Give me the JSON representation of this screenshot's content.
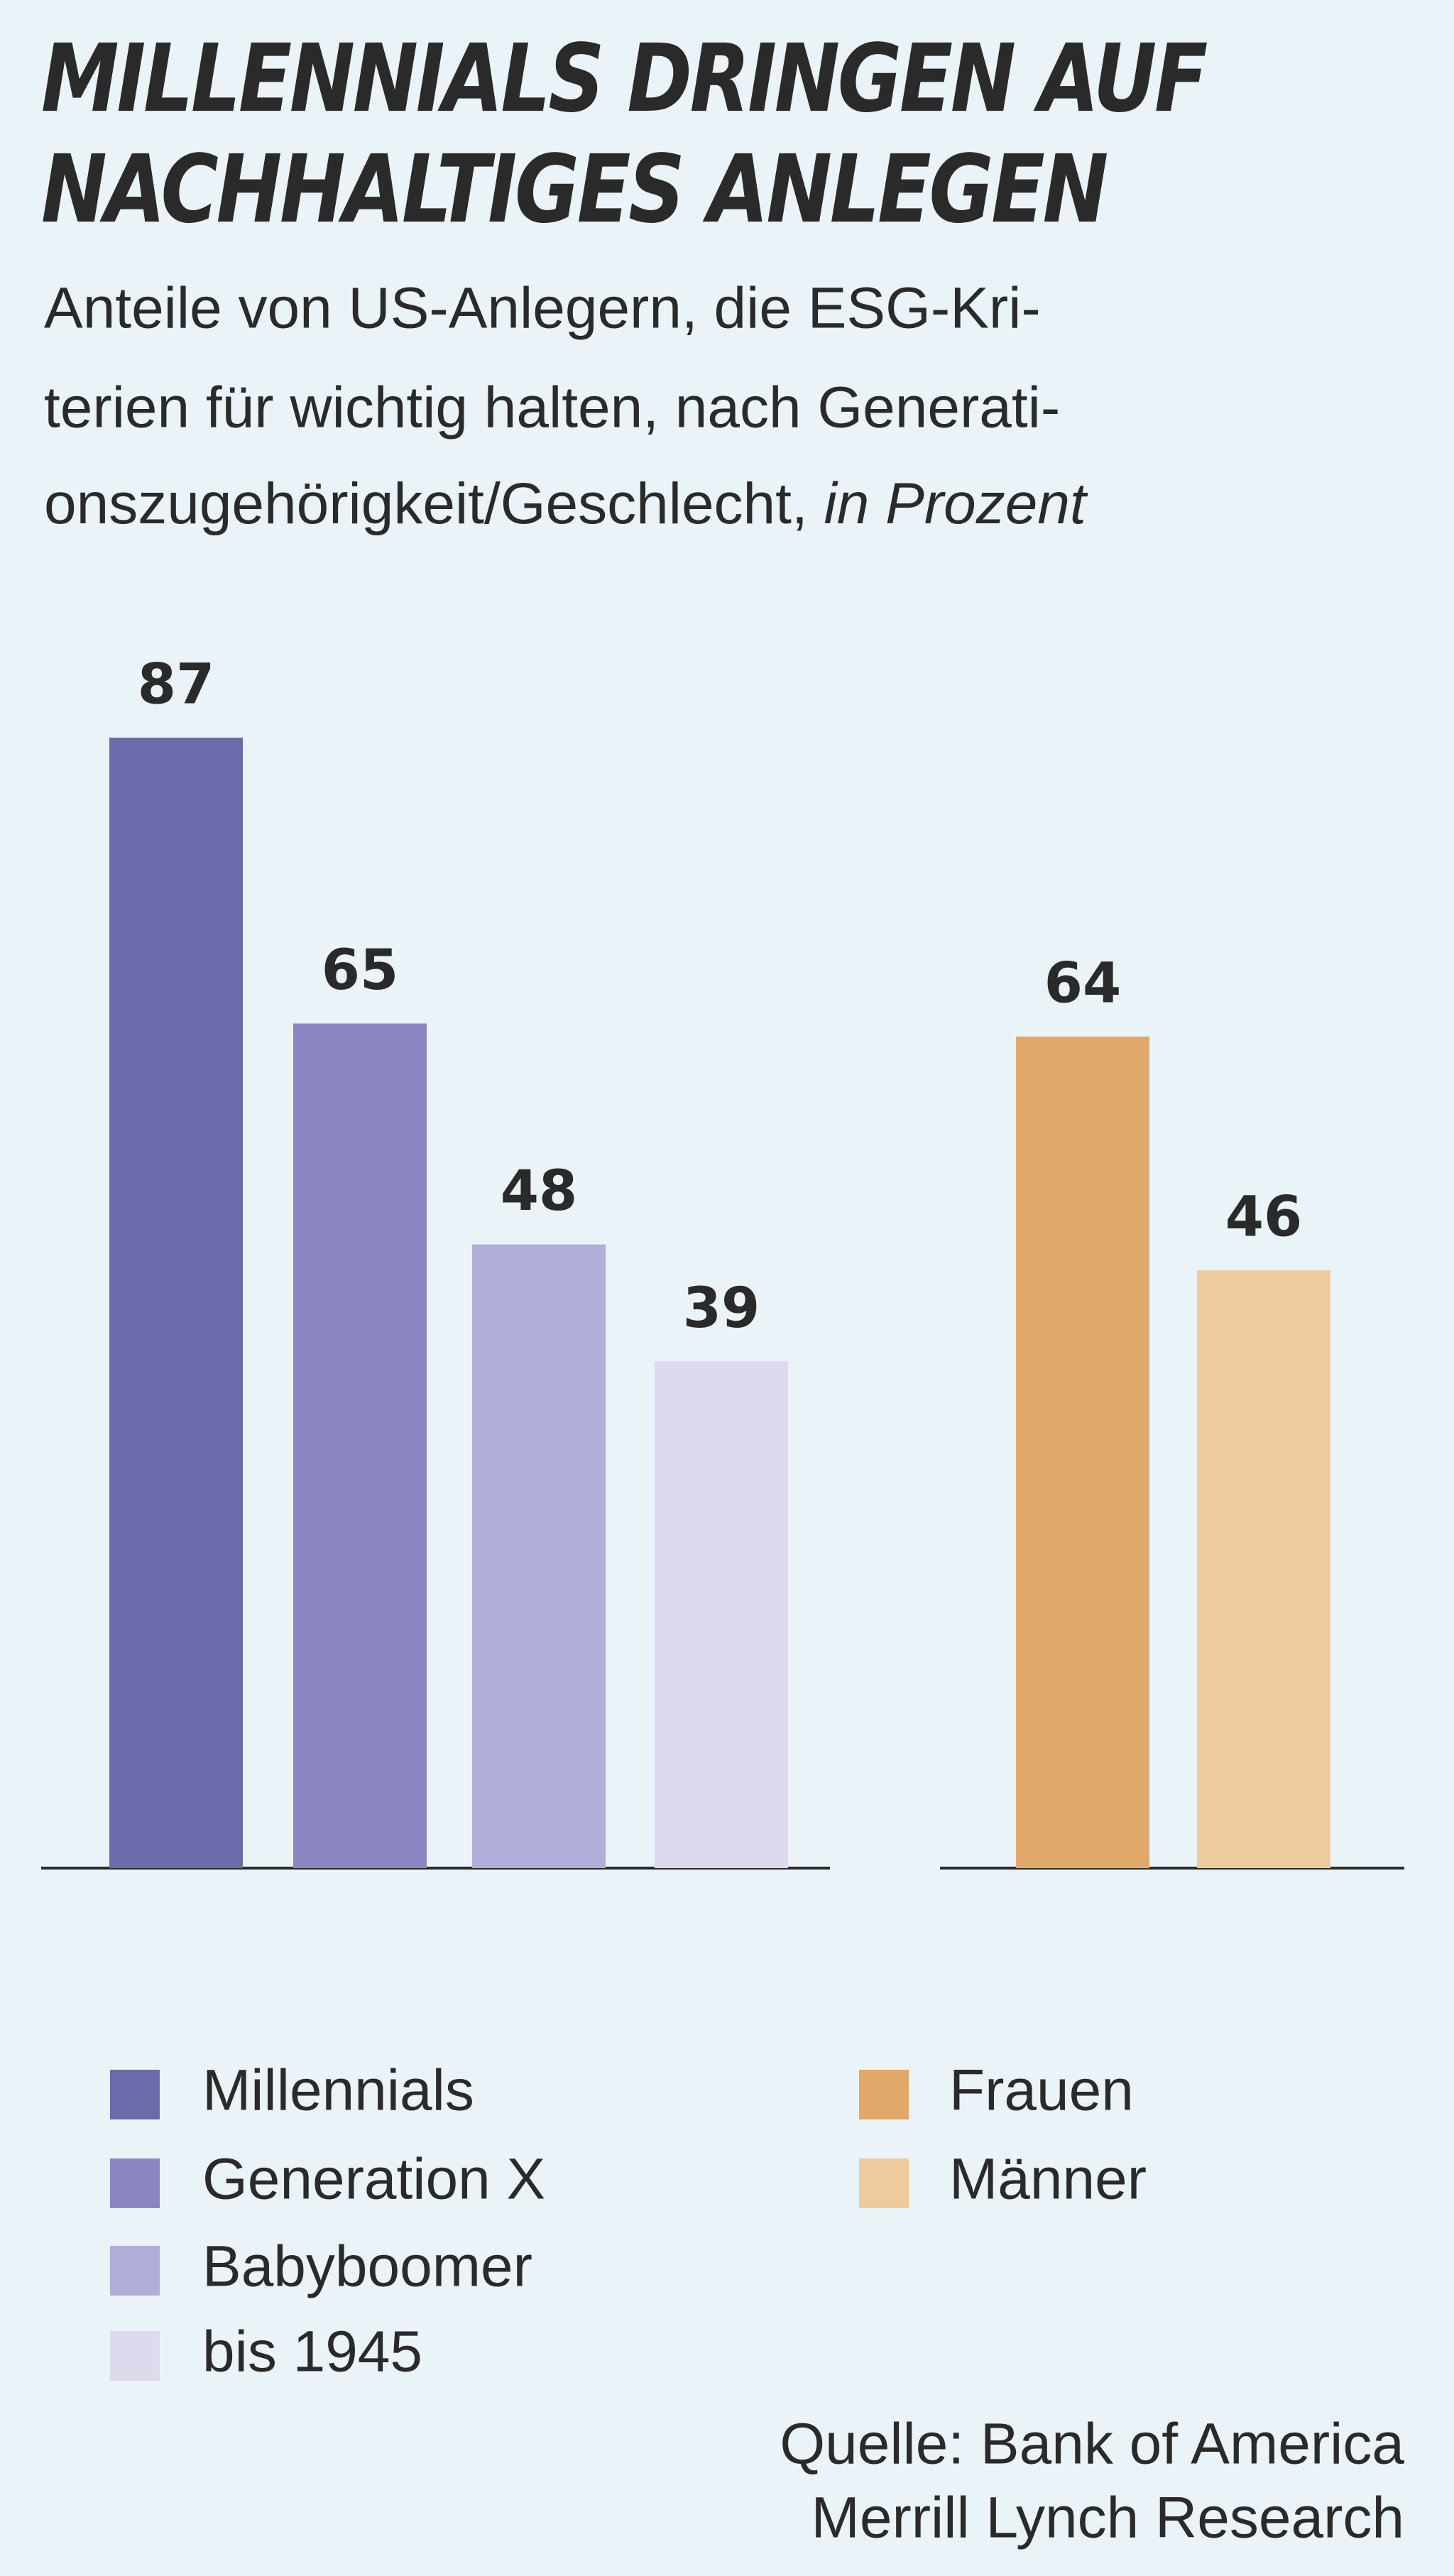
{
  "chart_data": {
    "type": "bar",
    "title": [
      "MILLENNIALS DRINGEN AUF",
      "NACHHALTIGES ANLEGEN"
    ],
    "subtitle": [
      "Anteile von US-Anlegern, die ESG-Kri-",
      "terien für wichtig halten, nach Generati-",
      "onszugehörigkeit/Geschlecht,"
    ],
    "subtitle_unit": "in Prozent",
    "ylim": [
      0,
      100
    ],
    "groups": [
      {
        "series": [
          {
            "name": "Millennials",
            "color": "#6b6aab",
            "values": [
              87
            ]
          },
          {
            "name": "Generation X",
            "color": "#8986c1",
            "values": [
              65
            ]
          },
          {
            "name": "Babyboomer",
            "color": "#b0aed9",
            "values": [
              48
            ]
          },
          {
            "name": "bis 1945",
            "color": "#dcdaec",
            "values": [
              39
            ]
          }
        ]
      },
      {
        "series": [
          {
            "name": "Frauen",
            "color": "#e0a96a",
            "values": [
              64
            ]
          },
          {
            "name": "Männer",
            "color": "#eecb9c",
            "values": [
              46
            ]
          }
        ]
      }
    ],
    "source": [
      "Quelle: Bank of America",
      "Merrill Lynch Research"
    ]
  }
}
